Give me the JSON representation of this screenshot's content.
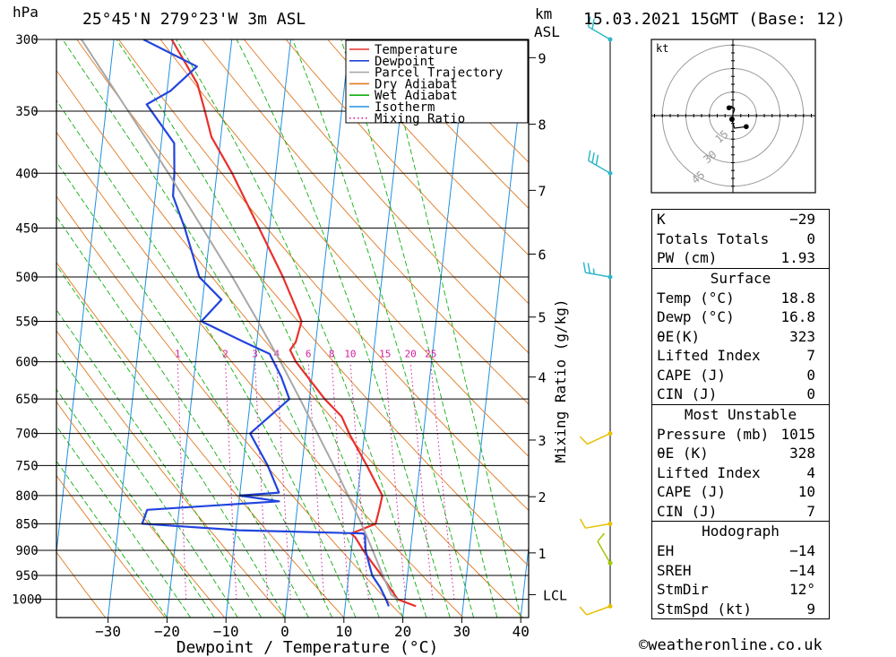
{
  "header": {
    "hpa_label": "hPa",
    "location": "25°45'N 279°23'W 3m ASL",
    "km_label": "km",
    "asl_label": "ASL",
    "datetime": "15.03.2021 15GMT (Base: 12)"
  },
  "chart_data": {
    "type": "line",
    "title": "",
    "xlabel": "Dewpoint / Temperature (°C)",
    "ylabel": "Mixing Ratio (g/kg)",
    "x_ticks": [
      -30,
      -20,
      -10,
      0,
      10,
      20,
      30,
      40
    ],
    "x_tick_labels": [
      "−30",
      "−20",
      "−10",
      "0",
      "10",
      "20",
      "30",
      "40"
    ],
    "pressure_levels": [
      300,
      350,
      400,
      450,
      500,
      550,
      600,
      650,
      700,
      750,
      800,
      850,
      900,
      950,
      1000
    ],
    "pressure_labels": [
      "300",
      "350",
      "400",
      "450",
      "500",
      "550",
      "600",
      "650",
      "700",
      "750",
      "800",
      "850",
      "900",
      "950",
      "1000"
    ],
    "km_ticks": [
      {
        "km": 1,
        "p": 905
      },
      {
        "km": 2,
        "p": 802
      },
      {
        "km": 3,
        "p": 710
      },
      {
        "km": 4,
        "p": 620
      },
      {
        "km": 5,
        "p": 545
      },
      {
        "km": 6,
        "p": 476
      },
      {
        "km": 7,
        "p": 415
      },
      {
        "km": 8,
        "p": 360
      },
      {
        "km": 9,
        "p": 312
      }
    ],
    "km_labels": [
      "1",
      "2",
      "3",
      "4",
      "5",
      "6",
      "7",
      "8",
      "9"
    ],
    "lcl_label": "LCL",
    "lcl_pressure": 990,
    "mixing_ratio_values": [
      1,
      2,
      3,
      4,
      6,
      8,
      10,
      15,
      20,
      25
    ],
    "mixing_ratio_labels": [
      "1",
      "2",
      "3",
      "4",
      "6",
      "8",
      "10",
      "15",
      "20",
      "25"
    ],
    "legend": {
      "position": "top",
      "entries": [
        "Temperature",
        "Dewpoint",
        "Parcel Trajectory",
        "Dry Adiabat",
        "Wet Adiabat",
        "Isotherm",
        "Mixing Ratio"
      ]
    },
    "colors": {
      "temperature": "#e8302c",
      "dewpoint": "#2244dd",
      "parcel": "#a8a8a8",
      "dry_adiabat": "#e07820",
      "wet_adiabat": "#10b010",
      "isotherm": "#2090e0",
      "mixing_ratio": "#d0209a",
      "wind_light": "#e6c000",
      "wind_mid": "#a0c800",
      "wind_upper": "#30b8c8"
    },
    "series": [
      {
        "name": "Temperature",
        "points": [
          [
            1015,
            22.0
          ],
          [
            1000,
            18.8
          ],
          [
            975,
            17.2
          ],
          [
            950,
            15.6
          ],
          [
            925,
            13.8
          ],
          [
            900,
            12.0
          ],
          [
            875,
            10.4
          ],
          [
            868,
            9.6
          ],
          [
            862,
            11.0
          ],
          [
            850,
            13.6
          ],
          [
            835,
            13.8
          ],
          [
            820,
            14.0
          ],
          [
            800,
            14.2
          ],
          [
            750,
            11.0
          ],
          [
            700,
            7.4
          ],
          [
            675,
            5.8
          ],
          [
            650,
            2.6
          ],
          [
            600,
            -3.0
          ],
          [
            585,
            -4.2
          ],
          [
            575,
            -3.4
          ],
          [
            550,
            -2.8
          ],
          [
            500,
            -6.8
          ],
          [
            450,
            -11.8
          ],
          [
            400,
            -17.4
          ],
          [
            370,
            -21.6
          ],
          [
            350,
            -23.2
          ],
          [
            330,
            -25.0
          ],
          [
            300,
            -30.2
          ]
        ]
      },
      {
        "name": "Dewpoint",
        "points": [
          [
            1015,
            17.4
          ],
          [
            1000,
            16.8
          ],
          [
            975,
            15.6
          ],
          [
            950,
            14.0
          ],
          [
            925,
            13.2
          ],
          [
            900,
            12.4
          ],
          [
            870,
            12.0
          ],
          [
            868,
            11.8
          ],
          [
            862,
            -9.4
          ],
          [
            850,
            -26.0
          ],
          [
            825,
            -25.4
          ],
          [
            810,
            -3.2
          ],
          [
            800,
            -10.0
          ],
          [
            795,
            -3.4
          ],
          [
            750,
            -5.8
          ],
          [
            700,
            -9.4
          ],
          [
            650,
            -3.4
          ],
          [
            620,
            -5.2
          ],
          [
            590,
            -7.6
          ],
          [
            575,
            -12.2
          ],
          [
            550,
            -19.8
          ],
          [
            525,
            -16.8
          ],
          [
            500,
            -21.0
          ],
          [
            450,
            -24.4
          ],
          [
            420,
            -27.0
          ],
          [
            400,
            -27.2
          ],
          [
            375,
            -27.8
          ],
          [
            345,
            -33.2
          ],
          [
            335,
            -29.4
          ],
          [
            318,
            -25.4
          ],
          [
            300,
            -35.0
          ]
        ]
      },
      {
        "name": "Parcel Trajectory",
        "points": [
          [
            1000,
            18.8
          ],
          [
            990,
            17.6
          ],
          [
            950,
            15.8
          ],
          [
            900,
            13.6
          ],
          [
            850,
            11.2
          ],
          [
            800,
            8.4
          ],
          [
            750,
            5.4
          ],
          [
            700,
            2.0
          ],
          [
            650,
            -1.6
          ],
          [
            600,
            -5.6
          ],
          [
            550,
            -10.2
          ],
          [
            500,
            -15.4
          ],
          [
            450,
            -21.4
          ],
          [
            400,
            -28.2
          ],
          [
            350,
            -36.2
          ],
          [
            300,
            -45.5
          ]
        ]
      }
    ],
    "wind_barbs": [
      {
        "p": 1015,
        "dir": 250,
        "speed_kt": 10
      },
      {
        "p": 925,
        "dir": 330,
        "speed_kt": 10
      },
      {
        "p": 850,
        "dir": 260,
        "speed_kt": 10
      },
      {
        "p": 700,
        "dir": 245,
        "speed_kt": 10
      },
      {
        "p": 500,
        "dir": 280,
        "speed_kt": 25
      },
      {
        "p": 400,
        "dir": 300,
        "speed_kt": 30
      },
      {
        "p": 300,
        "dir": 300,
        "speed_kt": 20
      }
    ],
    "hodograph": {
      "unit_label": "kt",
      "ring_values": [
        15,
        30,
        45
      ],
      "ring_labels": [
        "15",
        "30",
        "45"
      ],
      "trace_kt": [
        [
          8.5,
          -7.0
        ],
        [
          1.0,
          -8.0
        ],
        [
          -0.5,
          -3.0
        ],
        [
          0.0,
          1.0
        ],
        [
          1.0,
          4.0
        ],
        [
          -1.0,
          6.0
        ],
        [
          -2.5,
          5.0
        ]
      ],
      "storm_motion_kt": [
        -0.6,
        -2.3
      ]
    }
  },
  "indices": [
    {
      "label": "K",
      "value": "−29"
    },
    {
      "label": "Totals Totals",
      "value": "0"
    },
    {
      "label": "PW (cm)",
      "value": "1.93"
    }
  ],
  "surface": {
    "title": "Surface",
    "rows": [
      {
        "label": "Temp (°C)",
        "value": "18.8"
      },
      {
        "label": "Dewp (°C)",
        "value": "16.8"
      },
      {
        "label": "θE(K)",
        "value": "323"
      },
      {
        "label": "Lifted Index",
        "value": "7"
      },
      {
        "label": "CAPE (J)",
        "value": "0"
      },
      {
        "label": "CIN (J)",
        "value": "0"
      }
    ]
  },
  "most_unstable": {
    "title": "Most Unstable",
    "rows": [
      {
        "label": "Pressure (mb)",
        "value": "1015"
      },
      {
        "label": "θE (K)",
        "value": "328"
      },
      {
        "label": "Lifted Index",
        "value": "4"
      },
      {
        "label": "CAPE (J)",
        "value": "10"
      },
      {
        "label": "CIN (J)",
        "value": "7"
      }
    ]
  },
  "hodograph_table": {
    "title": "Hodograph",
    "rows": [
      {
        "label": "EH",
        "value": "−14"
      },
      {
        "label": "SREH",
        "value": "−14"
      },
      {
        "label": "StmDir",
        "value": "12°"
      },
      {
        "label": "StmSpd (kt)",
        "value": "9"
      }
    ]
  },
  "credit": "©weatheronline.co.uk"
}
